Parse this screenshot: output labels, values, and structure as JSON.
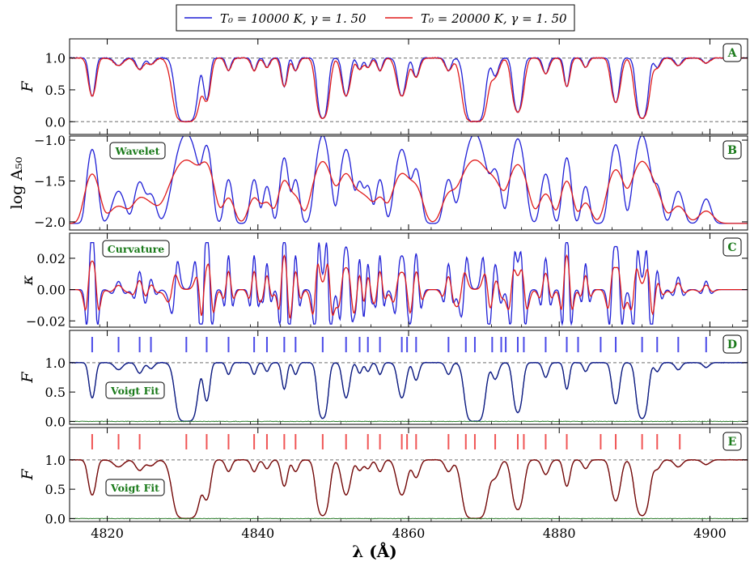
{
  "legend": {
    "items": [
      {
        "label": "T₀ = 10000 K, γ = 1. 50",
        "color": "#1f1fd6"
      },
      {
        "label": "T₀ = 20000 K, γ = 1. 50",
        "color": "#e01b1b"
      }
    ]
  },
  "colors": {
    "blue": "#1f1fd6",
    "red": "#e01b1b",
    "navy": "#0b1b7a",
    "maroon": "#6b0a0a",
    "green": "#2e7d2e",
    "refline": "#8a8a8a"
  },
  "chart_data": {
    "type": "line",
    "xlabel": "λ (Å)",
    "xlim": [
      4815,
      4905
    ],
    "xticks": [
      4820,
      4840,
      4860,
      4880,
      4900
    ],
    "absorption_lines": [
      {
        "c": 4818.0,
        "d": 0.6,
        "w": 0.35
      },
      {
        "c": 4821.5,
        "d": 0.12,
        "w": 0.5
      },
      {
        "c": 4824.3,
        "d": 0.18,
        "w": 0.4
      },
      {
        "c": 4825.8,
        "d": 0.1,
        "w": 0.4
      },
      {
        "c": 4830.5,
        "d": 1.0,
        "w": 0.75
      },
      {
        "c": 4833.2,
        "d": 0.65,
        "w": 0.35
      },
      {
        "c": 4836.1,
        "d": 0.2,
        "w": 0.3
      },
      {
        "c": 4839.5,
        "d": 0.2,
        "w": 0.3
      },
      {
        "c": 4841.2,
        "d": 0.15,
        "w": 0.3
      },
      {
        "c": 4843.5,
        "d": 0.45,
        "w": 0.3
      },
      {
        "c": 4845.0,
        "d": 0.2,
        "w": 0.3
      },
      {
        "c": 4848.6,
        "d": 0.95,
        "w": 0.45
      },
      {
        "c": 4851.7,
        "d": 0.6,
        "w": 0.4
      },
      {
        "c": 4853.5,
        "d": 0.18,
        "w": 0.3
      },
      {
        "c": 4854.6,
        "d": 0.15,
        "w": 0.3
      },
      {
        "c": 4856.2,
        "d": 0.2,
        "w": 0.3
      },
      {
        "c": 4859.1,
        "d": 0.6,
        "w": 0.45
      },
      {
        "c": 4861.0,
        "d": 0.3,
        "w": 0.35
      },
      {
        "c": 4865.3,
        "d": 0.2,
        "w": 0.35
      },
      {
        "c": 4868.8,
        "d": 1.0,
        "w": 0.7
      },
      {
        "c": 4871.5,
        "d": 0.28,
        "w": 0.4
      },
      {
        "c": 4874.5,
        "d": 0.85,
        "w": 0.45
      },
      {
        "c": 4878.2,
        "d": 0.25,
        "w": 0.35
      },
      {
        "c": 4881.0,
        "d": 0.45,
        "w": 0.3
      },
      {
        "c": 4883.5,
        "d": 0.15,
        "w": 0.3
      },
      {
        "c": 4887.5,
        "d": 0.7,
        "w": 0.4
      },
      {
        "c": 4891.0,
        "d": 0.95,
        "w": 0.5
      },
      {
        "c": 4893.0,
        "d": 0.15,
        "w": 0.35
      },
      {
        "c": 4895.8,
        "d": 0.12,
        "w": 0.4
      },
      {
        "c": 4899.5,
        "d": 0.08,
        "w": 0.4
      }
    ],
    "panels": [
      {
        "id": "A",
        "ylabel": "F",
        "ylim": [
          -0.2,
          1.3
        ],
        "yticks": [
          0.0,
          0.5,
          1.0
        ],
        "ytick_labels": [
          "0.0",
          "0.5",
          "1.0"
        ],
        "reflines": [
          1.0,
          0.0
        ],
        "series": [
          "flux_10000K",
          "flux_20000K"
        ]
      },
      {
        "id": "B",
        "ylabel": "log A₅₀",
        "annotation": "Wavelet",
        "ylim": [
          -2.1,
          -0.95
        ],
        "yticks": [
          -2.0,
          -1.5,
          -1.0
        ],
        "ytick_labels": [
          "−2.0",
          "−1.5",
          "−1.0"
        ],
        "series": [
          "wavelet_10000K",
          "wavelet_20000K"
        ]
      },
      {
        "id": "C",
        "ylabel": "κ",
        "annotation": "Curvature",
        "ylim": [
          -0.024,
          0.036
        ],
        "yticks": [
          -0.02,
          0.0,
          0.02
        ],
        "ytick_labels": [
          "−0.02",
          "0.00",
          "0.02"
        ],
        "series": [
          "curvature_10000K",
          "curvature_20000K"
        ]
      },
      {
        "id": "D",
        "ylabel": "F",
        "annotation": "Voigt Fit",
        "ylim": [
          -0.05,
          1.55
        ],
        "yticks": [
          0.0,
          0.5,
          1.0
        ],
        "ytick_labels": [
          "0.0",
          "0.5",
          "1.0"
        ],
        "reflines": [
          1.0
        ],
        "series": [
          "flux_10000K",
          "voigt_fit",
          "residual"
        ],
        "line_markers": [
          4818.0,
          4821.5,
          4824.3,
          4825.8,
          4830.5,
          4833.2,
          4836.1,
          4839.5,
          4841.2,
          4843.5,
          4845.0,
          4848.6,
          4851.7,
          4853.5,
          4854.6,
          4856.2,
          4859.1,
          4859.8,
          4861.0,
          4865.3,
          4867.6,
          4868.8,
          4871.1,
          4872.3,
          4872.9,
          4874.5,
          4875.3,
          4878.2,
          4881.0,
          4882.5,
          4885.5,
          4887.5,
          4891.0,
          4893.0,
          4895.8,
          4899.5
        ]
      },
      {
        "id": "E",
        "ylabel": "F",
        "annotation": "Voigt Fit",
        "ylim": [
          -0.05,
          1.55
        ],
        "yticks": [
          0.0,
          0.5,
          1.0
        ],
        "ytick_labels": [
          "0.0",
          "0.5",
          "1.0"
        ],
        "reflines": [
          1.0
        ],
        "series": [
          "flux_20000K",
          "voigt_fit",
          "residual"
        ],
        "line_markers": [
          4818.0,
          4821.5,
          4824.3,
          4830.5,
          4833.2,
          4836.1,
          4839.5,
          4841.2,
          4843.5,
          4845.0,
          4848.6,
          4851.7,
          4854.6,
          4856.2,
          4859.1,
          4859.8,
          4861.0,
          4865.3,
          4867.6,
          4868.8,
          4871.5,
          4874.5,
          4875.3,
          4878.2,
          4881.0,
          4885.5,
          4887.5,
          4891.0,
          4893.0,
          4896.0
        ]
      }
    ]
  }
}
